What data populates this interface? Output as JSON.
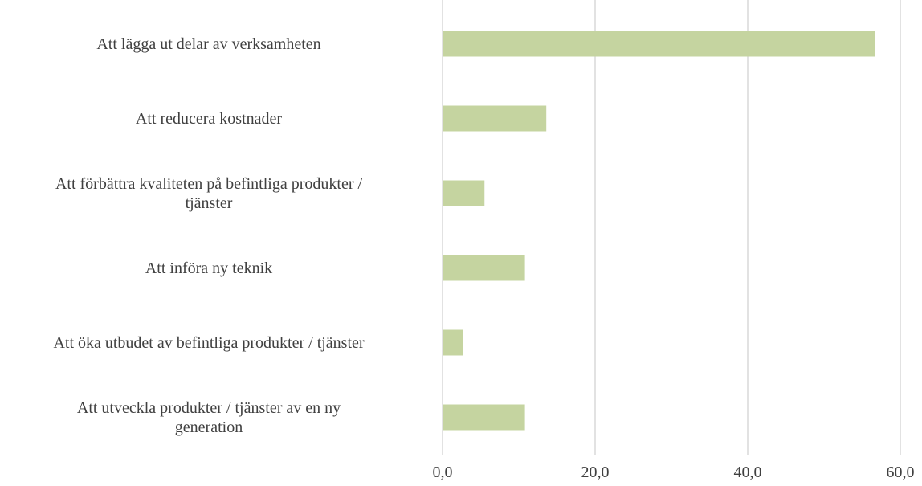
{
  "chart_data": {
    "type": "bar",
    "orientation": "horizontal",
    "categories": [
      "Att lägga ut delar av verksamheten",
      "Att reducera kostnader",
      "Att förbättra kvaliteten på befintliga produkter /\ntjänster",
      "Att införa ny teknik",
      "Att öka utbudet av befintliga produkter / tjänster",
      "Att utveckla produkter / tjänster av en ny\ngeneration"
    ],
    "values": [
      56.7,
      13.6,
      5.5,
      10.8,
      2.7,
      10.8
    ],
    "color": "#c5d4a0",
    "xlim": [
      0,
      60
    ],
    "xticks": [
      {
        "value": 0,
        "label": "0,0"
      },
      {
        "value": 20,
        "label": "20,0"
      },
      {
        "value": 40,
        "label": "40,0"
      },
      {
        "value": 60,
        "label": "60,0"
      }
    ],
    "grid": true
  }
}
